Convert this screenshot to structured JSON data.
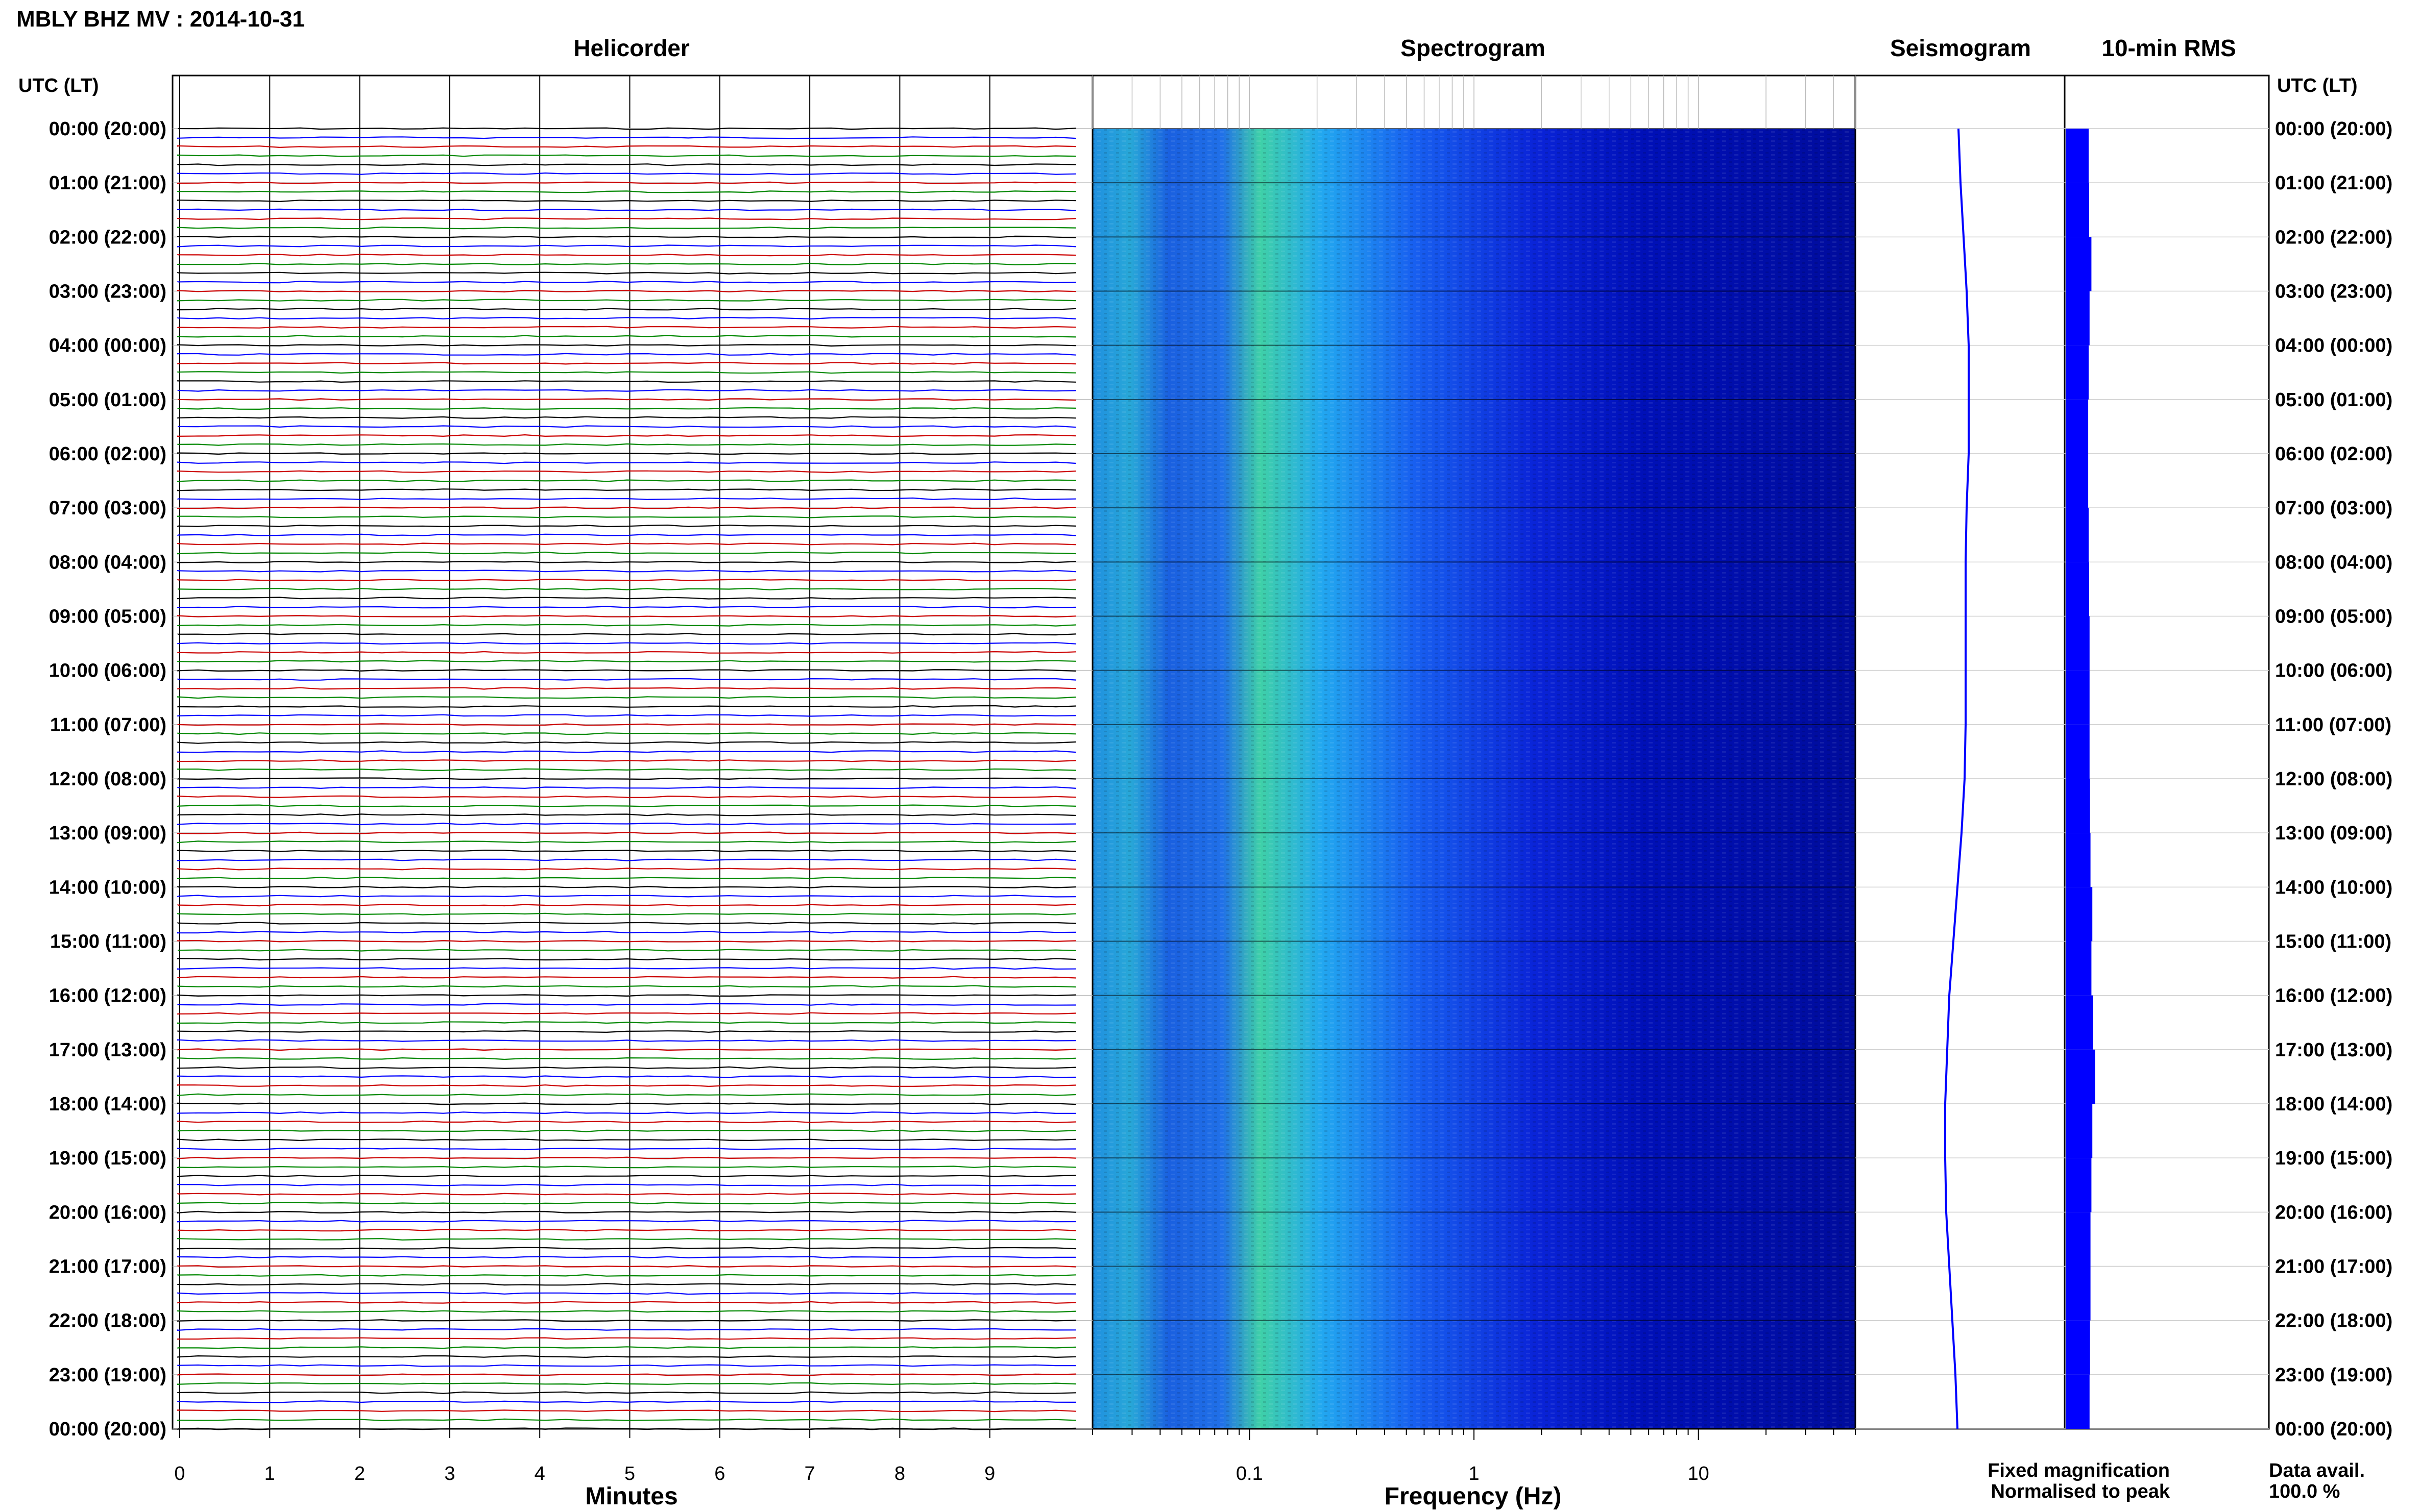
{
  "title": "MBLY BHZ MV : 2014-10-31",
  "panels": {
    "helicorder": "Helicorder",
    "spectrogram": "Spectrogram",
    "seismogram": "Seismogram",
    "rms": "10-min RMS"
  },
  "time_axis_label": "UTC (LT)",
  "time_ticks": [
    "00:00 (20:00)",
    "01:00 (21:00)",
    "02:00 (22:00)",
    "03:00 (23:00)",
    "04:00 (00:00)",
    "05:00 (01:00)",
    "06:00 (02:00)",
    "07:00 (03:00)",
    "08:00 (04:00)",
    "09:00 (05:00)",
    "10:00 (06:00)",
    "11:00 (07:00)",
    "12:00 (08:00)",
    "13:00 (09:00)",
    "14:00 (10:00)",
    "15:00 (11:00)",
    "16:00 (12:00)",
    "17:00 (13:00)",
    "18:00 (14:00)",
    "19:00 (15:00)",
    "20:00 (16:00)",
    "21:00 (17:00)",
    "22:00 (18:00)",
    "23:00 (19:00)",
    "00:00 (20:00)"
  ],
  "helicorder_xlabel": "Minutes",
  "helicorder_xticks": [
    "0",
    "1",
    "2",
    "3",
    "4",
    "5",
    "6",
    "7",
    "8",
    "9"
  ],
  "spectrogram_xlabel": "Frequency (Hz)",
  "spectrogram_xticks": [
    "0.1",
    "1",
    "10"
  ],
  "legend": {
    "fixed": "Fixed magnification",
    "normalised": "Normalised to peak",
    "fixed_color": "#0000ff",
    "normalised_color": "#ff0000"
  },
  "data_avail": {
    "label": "Data avail.",
    "value": "100.0 %"
  },
  "colors": {
    "trace_cycle": [
      "#000000",
      "#0000ff",
      "#cc0000",
      "#008800"
    ],
    "spectro_low": "#00008b",
    "spectro_high": "#7fff55"
  },
  "chart_data": [
    {
      "type": "line",
      "title": "Helicorder",
      "xlabel": "Minutes",
      "xlim": [
        0,
        10
      ],
      "ylim": [
        "00:00",
        "24:00"
      ],
      "rows_per_hour": 6,
      "trace_colors": [
        "black",
        "blue",
        "red",
        "green"
      ],
      "grid": true
    },
    {
      "type": "heatmap",
      "title": "Spectrogram",
      "xlabel": "Frequency (Hz)",
      "xscale": "log",
      "xlim": [
        0.02,
        50
      ],
      "ylim": [
        "00:00",
        "24:00"
      ],
      "colormap": "dark blue to green"
    },
    {
      "type": "line",
      "title": "Seismogram",
      "ylim": [
        "00:00",
        "24:00"
      ]
    },
    {
      "type": "bar",
      "title": "10-min RMS",
      "ylim": [
        "00:00",
        "24:00"
      ],
      "rms_by_hour": [
        0.5,
        0.55,
        0.8,
        0.6,
        0.5,
        0.45,
        0.45,
        0.5,
        0.55,
        0.6,
        0.6,
        0.6,
        0.65,
        0.7,
        0.9,
        0.8,
        1.0,
        1.2,
        0.9,
        0.8,
        0.7,
        0.7,
        0.65,
        0.6
      ]
    }
  ]
}
